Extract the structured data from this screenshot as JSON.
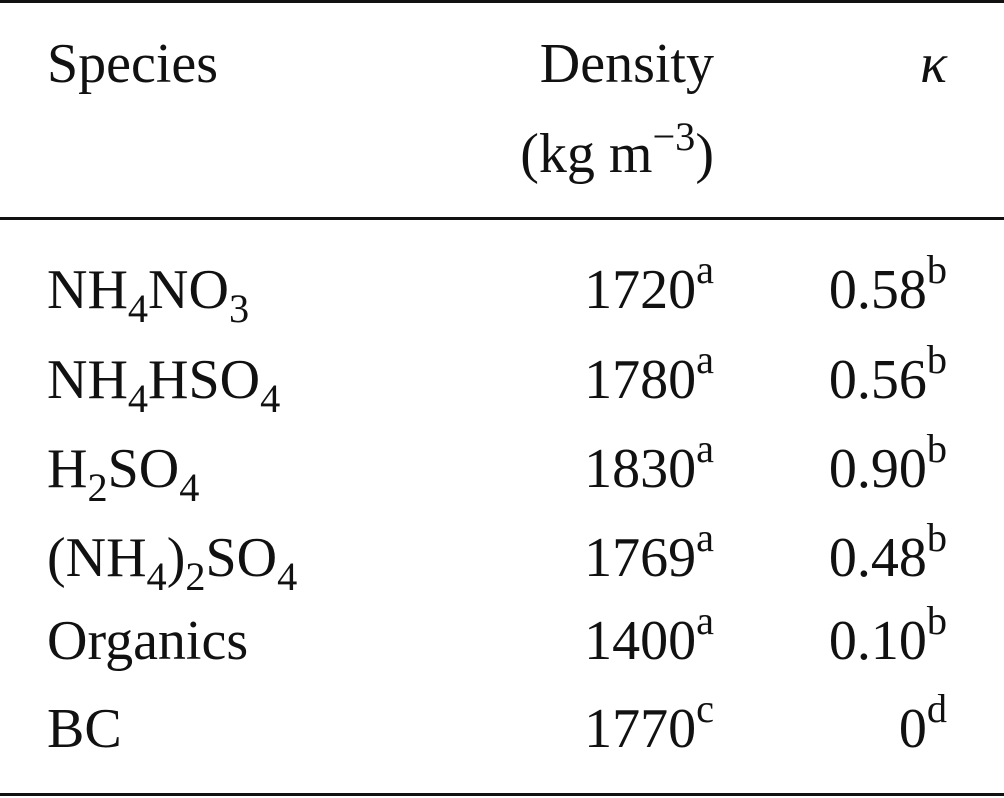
{
  "table": {
    "headers": {
      "species": "Species",
      "density": "Density",
      "density_unit_prefix": "(kg m",
      "density_unit_exp": "−3",
      "density_unit_suffix": ")",
      "kappa": "κ"
    },
    "rows": [
      {
        "species": [
          {
            "t": "NH"
          },
          {
            "sub": "4"
          },
          {
            "t": "NO"
          },
          {
            "sub": "3"
          }
        ],
        "density": "1720",
        "density_note": "a",
        "kappa": "0.58",
        "kappa_note": "b"
      },
      {
        "species": [
          {
            "t": "NH"
          },
          {
            "sub": "4"
          },
          {
            "t": "HSO"
          },
          {
            "sub": "4"
          }
        ],
        "density": "1780",
        "density_note": "a",
        "kappa": "0.56",
        "kappa_note": "b"
      },
      {
        "species": [
          {
            "t": "H"
          },
          {
            "sub": "2"
          },
          {
            "t": "SO"
          },
          {
            "sub": "4"
          }
        ],
        "density": "1830",
        "density_note": "a",
        "kappa": "0.90",
        "kappa_note": "b"
      },
      {
        "species": [
          {
            "t": "(NH"
          },
          {
            "sub": "4"
          },
          {
            "t": ")"
          },
          {
            "sub": "2"
          },
          {
            "t": "SO"
          },
          {
            "sub": "4"
          }
        ],
        "density": "1769",
        "density_note": "a",
        "kappa": "0.48",
        "kappa_note": "b"
      },
      {
        "species": [
          {
            "t": "Organics"
          }
        ],
        "density": "1400",
        "density_note": "a",
        "kappa": "0.10",
        "kappa_note": "b"
      },
      {
        "species": [
          {
            "t": "BC"
          }
        ],
        "density": "1770",
        "density_note": "c",
        "kappa": "0",
        "kappa_note": "d"
      }
    ]
  }
}
